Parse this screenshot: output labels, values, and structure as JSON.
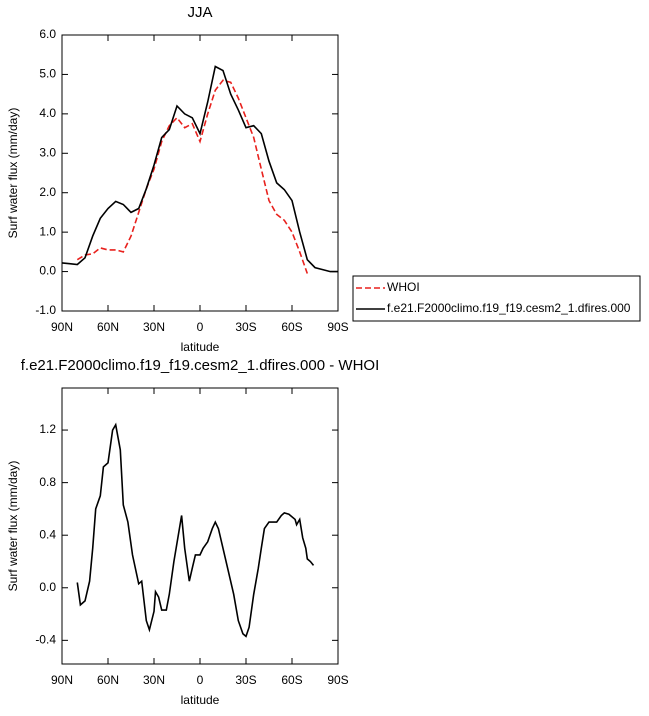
{
  "chart_data": [
    {
      "type": "line",
      "title": "JJA",
      "ylabel": "Surf water flux (mm/day)",
      "xlabel": "latitude",
      "x": [
        90,
        85,
        80,
        75,
        70,
        65,
        60,
        55,
        50,
        45,
        40,
        35,
        30,
        25,
        20,
        15,
        10,
        5,
        0,
        -5,
        -10,
        -15,
        -20,
        -25,
        -30,
        -35,
        -40,
        -45,
        -50,
        -55,
        -60,
        -65,
        -70,
        -75,
        -80,
        -85,
        -90
      ],
      "series": [
        {
          "name": "WHOI",
          "color": "#e8211d",
          "style": "dashed",
          "values": [
            null,
            null,
            0.3,
            0.42,
            0.45,
            0.6,
            0.55,
            0.55,
            0.5,
            0.9,
            1.5,
            2.1,
            2.6,
            3.3,
            3.7,
            3.9,
            3.65,
            3.75,
            3.3,
            4.0,
            4.6,
            4.85,
            4.8,
            4.4,
            3.9,
            3.4,
            2.6,
            1.8,
            1.45,
            1.3,
            1.0,
            0.5,
            -0.05,
            null,
            null,
            null,
            null
          ]
        },
        {
          "name": "f.e21.F2000climo.f19_f19.cesm2_1.dfires.000",
          "color": "#000000",
          "style": "solid",
          "values": [
            0.22,
            0.2,
            0.18,
            0.35,
            0.9,
            1.35,
            1.6,
            1.78,
            1.7,
            1.5,
            1.6,
            2.1,
            2.7,
            3.4,
            3.6,
            4.2,
            4.0,
            3.9,
            3.5,
            4.3,
            5.2,
            5.1,
            4.5,
            4.1,
            3.65,
            3.7,
            3.5,
            2.8,
            2.25,
            2.08,
            1.8,
            1.0,
            0.3,
            0.1,
            0.05,
            0.0,
            0.0
          ]
        }
      ],
      "xlim": [
        90,
        -90
      ],
      "xticks": [
        {
          "value": 90,
          "label": "90N"
        },
        {
          "value": 60,
          "label": "60N"
        },
        {
          "value": 30,
          "label": "30N"
        },
        0,
        {
          "value": -30,
          "label": "30S"
        },
        {
          "value": -60,
          "label": "60S"
        },
        {
          "value": -90,
          "label": "90S"
        }
      ],
      "ylim": [
        -1,
        6
      ],
      "yticks": [
        {
          "value": -1,
          "label": "-1.0"
        },
        {
          "value": 0,
          "label": "0.0"
        },
        {
          "value": 1,
          "label": "1.0"
        },
        {
          "value": 2,
          "label": "2.0"
        },
        {
          "value": 3,
          "label": "3.0"
        },
        {
          "value": 4,
          "label": "4.0"
        },
        {
          "value": 5,
          "label": "5.0"
        },
        {
          "value": 6,
          "label": "6.0"
        }
      ],
      "legend": "right"
    },
    {
      "type": "line",
      "title": "f.e21.F2000climo.f19_f19.cesm2_1.dfires.000 - WHOI",
      "ylabel": "Surf water flux (mm/day)",
      "xlabel": "latitude",
      "x": [
        80,
        78,
        75,
        72,
        70,
        68,
        65,
        63,
        60,
        57,
        55,
        52,
        50,
        47,
        44,
        40,
        38,
        35,
        33,
        30,
        29,
        27,
        25,
        22,
        20,
        17,
        12,
        10,
        7,
        5,
        3,
        0,
        -2,
        -5,
        -8,
        -10,
        -12,
        -15,
        -18,
        -22,
        -25,
        -28,
        -30,
        -32,
        -35,
        -38,
        -40,
        -42,
        -45,
        -50,
        -53,
        -55,
        -58,
        -62,
        -63,
        -65,
        -67,
        -69,
        -70,
        -72,
        -74
      ],
      "series": [
        {
          "color": "#000000",
          "style": "solid",
          "values": [
            0.04,
            -0.13,
            -0.1,
            0.05,
            0.3,
            0.6,
            0.7,
            0.92,
            0.95,
            1.2,
            1.24,
            1.05,
            0.63,
            0.5,
            0.25,
            0.03,
            0.05,
            -0.25,
            -0.32,
            -0.18,
            -0.03,
            -0.07,
            -0.17,
            -0.17,
            -0.05,
            0.2,
            0.55,
            0.3,
            0.05,
            0.15,
            0.25,
            0.25,
            0.3,
            0.35,
            0.45,
            0.5,
            0.45,
            0.3,
            0.15,
            -0.05,
            -0.25,
            -0.35,
            -0.37,
            -0.3,
            -0.05,
            0.15,
            0.3,
            0.45,
            0.5,
            0.5,
            0.55,
            0.57,
            0.56,
            0.52,
            0.48,
            0.52,
            0.38,
            0.3,
            0.22,
            0.2,
            0.17
          ]
        }
      ],
      "xlim": [
        90,
        -90
      ],
      "xticks": [
        {
          "value": 90,
          "label": "90N"
        },
        {
          "value": 60,
          "label": "60N"
        },
        {
          "value": 30,
          "label": "30N"
        },
        0,
        {
          "value": -30,
          "label": "30S"
        },
        {
          "value": -60,
          "label": "60S"
        },
        {
          "value": -90,
          "label": "90S"
        }
      ],
      "ylim": [
        -0.58,
        1.52
      ],
      "yticks": [
        {
          "value": -0.4,
          "label": "-0.4"
        },
        {
          "value": 0,
          "label": "0.0"
        },
        0.4,
        0.8,
        1.2
      ]
    }
  ]
}
